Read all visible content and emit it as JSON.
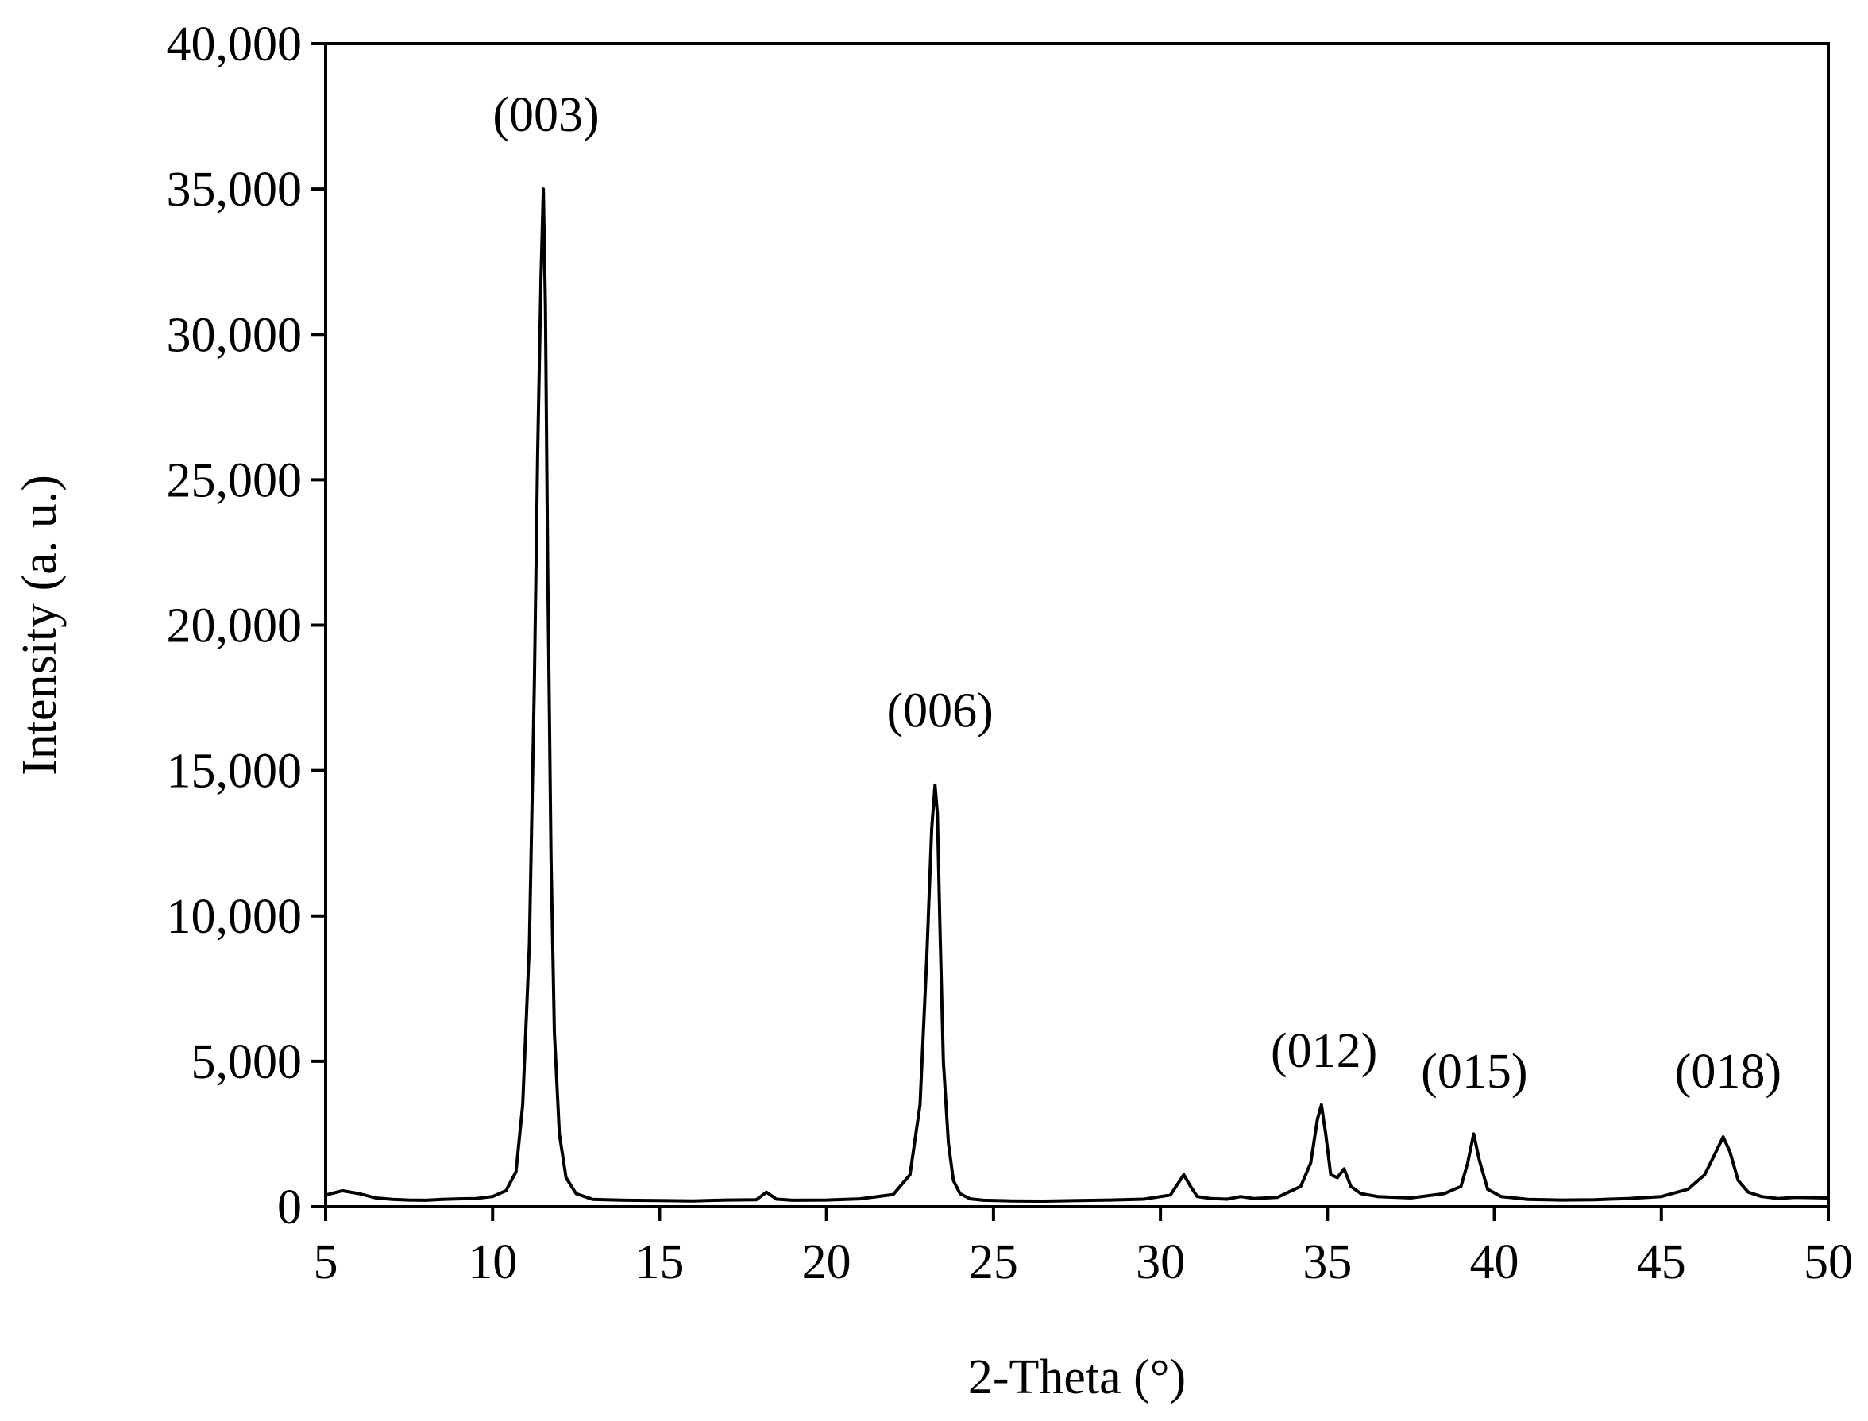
{
  "chart_data": {
    "type": "line",
    "title": "",
    "xlabel": "2-Theta (°)",
    "ylabel": "Intensity (a. u.)",
    "xlim": [
      5,
      50
    ],
    "ylim": [
      0,
      40000
    ],
    "x_ticks": [
      5,
      10,
      15,
      20,
      25,
      30,
      35,
      40,
      45,
      50
    ],
    "x_tick_labels": [
      "5",
      "10",
      "15",
      "20",
      "25",
      "30",
      "35",
      "40",
      "45",
      "50"
    ],
    "y_ticks": [
      0,
      5000,
      10000,
      15000,
      20000,
      25000,
      30000,
      35000,
      40000
    ],
    "y_tick_labels": [
      "0",
      "5,000",
      "10,000",
      "15,000",
      "20,000",
      "25,000",
      "30,000",
      "35,000",
      "40,000"
    ],
    "grid": false,
    "legend": "none",
    "line_color": "#000000",
    "series": [
      {
        "x": [
          5.0,
          5.5,
          6.0,
          6.5,
          7.0,
          7.5,
          8.0,
          8.5,
          9.0,
          9.5,
          10.0,
          10.4,
          10.7,
          10.9,
          11.1,
          11.25,
          11.35,
          11.45,
          11.52,
          11.58,
          11.65,
          11.75,
          11.85,
          12.0,
          12.2,
          12.5,
          13.0,
          14.0,
          15.0,
          16.0,
          17.0,
          17.9,
          18.2,
          18.5,
          19.0,
          20.0,
          21.0,
          22.0,
          22.5,
          22.8,
          23.0,
          23.15,
          23.25,
          23.32,
          23.4,
          23.5,
          23.65,
          23.8,
          24.0,
          24.3,
          24.7,
          25.5,
          26.5,
          27.5,
          28.5,
          29.5,
          30.3,
          30.7,
          30.9,
          31.1,
          31.5,
          32.0,
          32.4,
          32.8,
          33.5,
          34.2,
          34.5,
          34.7,
          34.82,
          34.95,
          35.1,
          35.3,
          35.5,
          35.7,
          36.0,
          36.5,
          37.5,
          38.5,
          39.0,
          39.2,
          39.38,
          39.55,
          39.8,
          40.2,
          41.0,
          42.0,
          43.0,
          44.0,
          45.0,
          45.8,
          46.3,
          46.6,
          46.85,
          47.05,
          47.3,
          47.6,
          48.0,
          48.5,
          49.0,
          50.0
        ],
        "y": [
          400,
          550,
          450,
          300,
          250,
          230,
          220,
          250,
          270,
          280,
          350,
          550,
          1200,
          3500,
          9000,
          18000,
          26000,
          32000,
          35000,
          31000,
          22000,
          12000,
          6000,
          2500,
          1000,
          450,
          250,
          220,
          210,
          200,
          230,
          240,
          500,
          260,
          220,
          230,
          270,
          420,
          1100,
          3500,
          8500,
          13000,
          14500,
          13500,
          9500,
          5000,
          2200,
          900,
          450,
          270,
          220,
          200,
          190,
          210,
          230,
          260,
          400,
          1100,
          700,
          350,
          280,
          260,
          350,
          280,
          320,
          700,
          1500,
          3000,
          3500,
          2500,
          1100,
          1000,
          1300,
          700,
          450,
          350,
          300,
          450,
          700,
          1500,
          2500,
          1600,
          600,
          350,
          250,
          230,
          240,
          280,
          350,
          600,
          1100,
          1800,
          2400,
          1900,
          900,
          500,
          350,
          280,
          320,
          300
        ]
      }
    ],
    "annotations": [
      {
        "text": "(003)",
        "x": 11.6,
        "y": 37000
      },
      {
        "text": "(006)",
        "x": 23.4,
        "y": 16500
      },
      {
        "text": "(012)",
        "x": 34.9,
        "y": 4800
      },
      {
        "text": "(015)",
        "x": 39.4,
        "y": 4100
      },
      {
        "text": "(018)",
        "x": 47.0,
        "y": 4100
      }
    ]
  }
}
